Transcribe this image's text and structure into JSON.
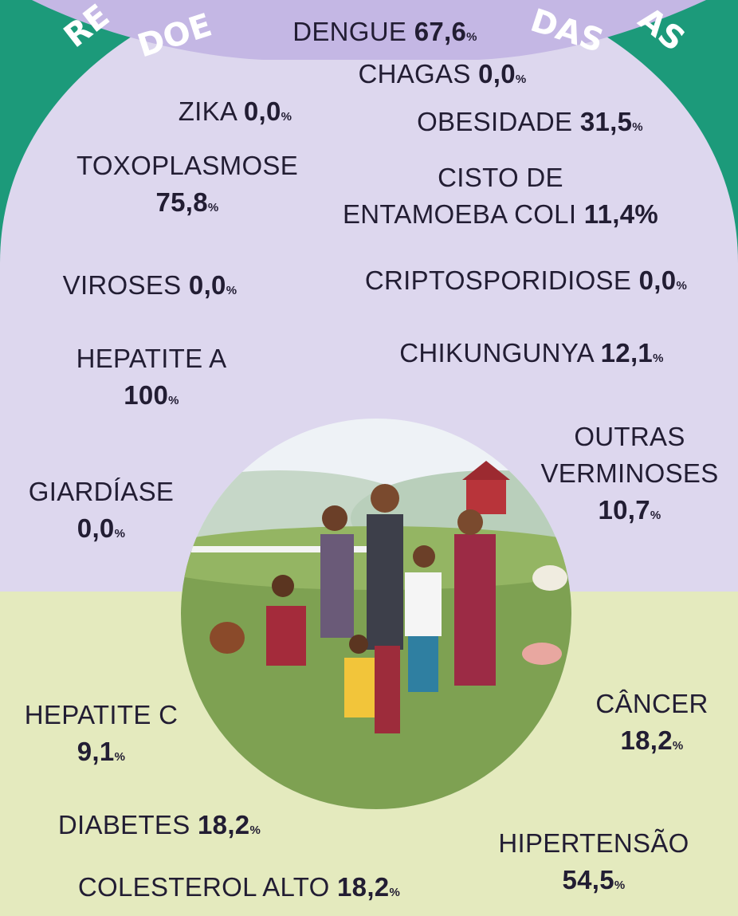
{
  "banner_fragments": [
    "RE",
    "DOE",
    "DAS",
    "AS"
  ],
  "unit": "%",
  "items": [
    {
      "name": [
        "DENGUE"
      ],
      "value": "67,6"
    },
    {
      "name": [
        "CHAGAS"
      ],
      "value": "0,0"
    },
    {
      "name": [
        "ZIKA"
      ],
      "value": "0,0"
    },
    {
      "name": [
        "OBESIDADE"
      ],
      "value": "31,5"
    },
    {
      "name": [
        "TOXOPLASMOSE"
      ],
      "value": "75,8"
    },
    {
      "name": [
        "CISTO DE",
        "ENTAMOEBA COLI"
      ],
      "value": "11,4"
    },
    {
      "name": [
        "VIROSES"
      ],
      "value": "0,0"
    },
    {
      "name": [
        "CRIPTOSPORIDIOSE"
      ],
      "value": "0,0"
    },
    {
      "name": [
        "HEPATITE A"
      ],
      "value": "100"
    },
    {
      "name": [
        "CHIKUNGUNYA"
      ],
      "value": "12,1"
    },
    {
      "name": [
        "OUTRAS",
        "VERMINOSES"
      ],
      "value": "10,7"
    },
    {
      "name": [
        "GIARDÍASE"
      ],
      "value": "0,0"
    },
    {
      "name": [
        "HEPATITE C"
      ],
      "value": "9,1"
    },
    {
      "name": [
        "CÂNCER"
      ],
      "value": "18,2"
    },
    {
      "name": [
        "DIABETES"
      ],
      "value": "18,2"
    },
    {
      "name": [
        "HIPERTENSÃO"
      ],
      "value": "54,5"
    },
    {
      "name": [
        "COLESTEROL ALTO"
      ],
      "value": "18,2"
    }
  ]
}
